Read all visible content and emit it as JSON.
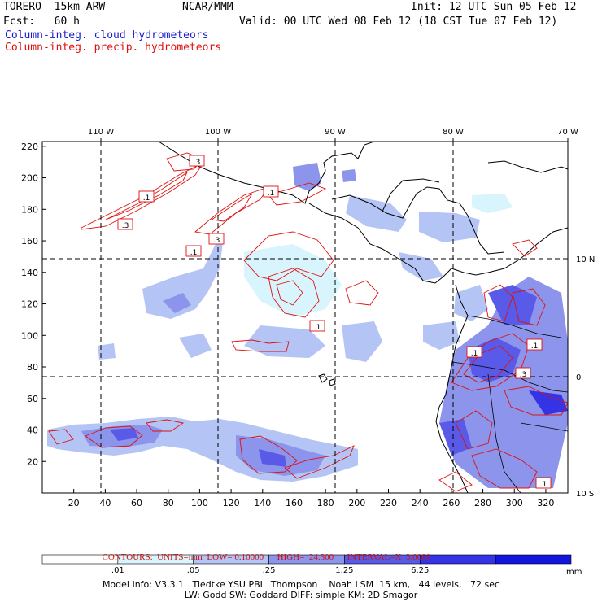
{
  "header": {
    "model": "TORERO  15km ARW",
    "center": "NCAR/MMM",
    "init": "Init: 12 UTC Sun 05 Feb 12",
    "fcst": "Fcst:   60 h",
    "valid": "Valid: 00 UTC Wed 08 Feb 12 (18 CST Tue 07 Feb 12)",
    "field1": "Column-integ. cloud hydrometeors",
    "field2": "Column-integ. precip. hydrometeors"
  },
  "colors": {
    "field1": "#1a1ad0",
    "field2": "#e01010",
    "contour": "#e01010",
    "coast": "#000000"
  },
  "map": {
    "lon_labels": [
      "110 W",
      "100 W",
      "90 W",
      "80 W",
      "70 W"
    ],
    "lat_labels": [
      "10 N",
      "0",
      "10 S"
    ],
    "x_ticks": [
      "20",
      "40",
      "60",
      "80",
      "100",
      "120",
      "140",
      "160",
      "180",
      "200",
      "220",
      "240",
      "260",
      "280",
      "300",
      "320"
    ],
    "y_ticks": [
      "20",
      "40",
      "60",
      "80",
      "100",
      "120",
      "140",
      "160",
      "180",
      "200",
      "220"
    ],
    "contour_labels": [
      ".1",
      ".3",
      ".3",
      ".1",
      ".3",
      ".1",
      ".1",
      ".1",
      ".3",
      ".1",
      ".1"
    ]
  },
  "contours_info": {
    "contours": "CONTOURS:",
    "units": "UNITS=mm",
    "low": "LOW= 0.10000",
    "high": "HIGH=  24.300",
    "interval": "INTERVAL=X  3.0000"
  },
  "colorbar": {
    "unit": "mm",
    "ticks": [
      ".01",
      ".05",
      ".25",
      "1.25",
      "6.25"
    ],
    "colors": [
      "#ffffff",
      "#d8f4fc",
      "#b4c4f4",
      "#8c94ec",
      "#5a5ae8",
      "#3434e6",
      "#1414e0"
    ]
  },
  "footer": {
    "line1": "Model Info: V3.3.1   Tiedtke YSU PBL  Thompson    Noah LSM  15 km,   44 levels,   72 sec",
    "line2": "LW: Godd SW: Goddard DIFF: simple KM: 2D Smagor"
  }
}
